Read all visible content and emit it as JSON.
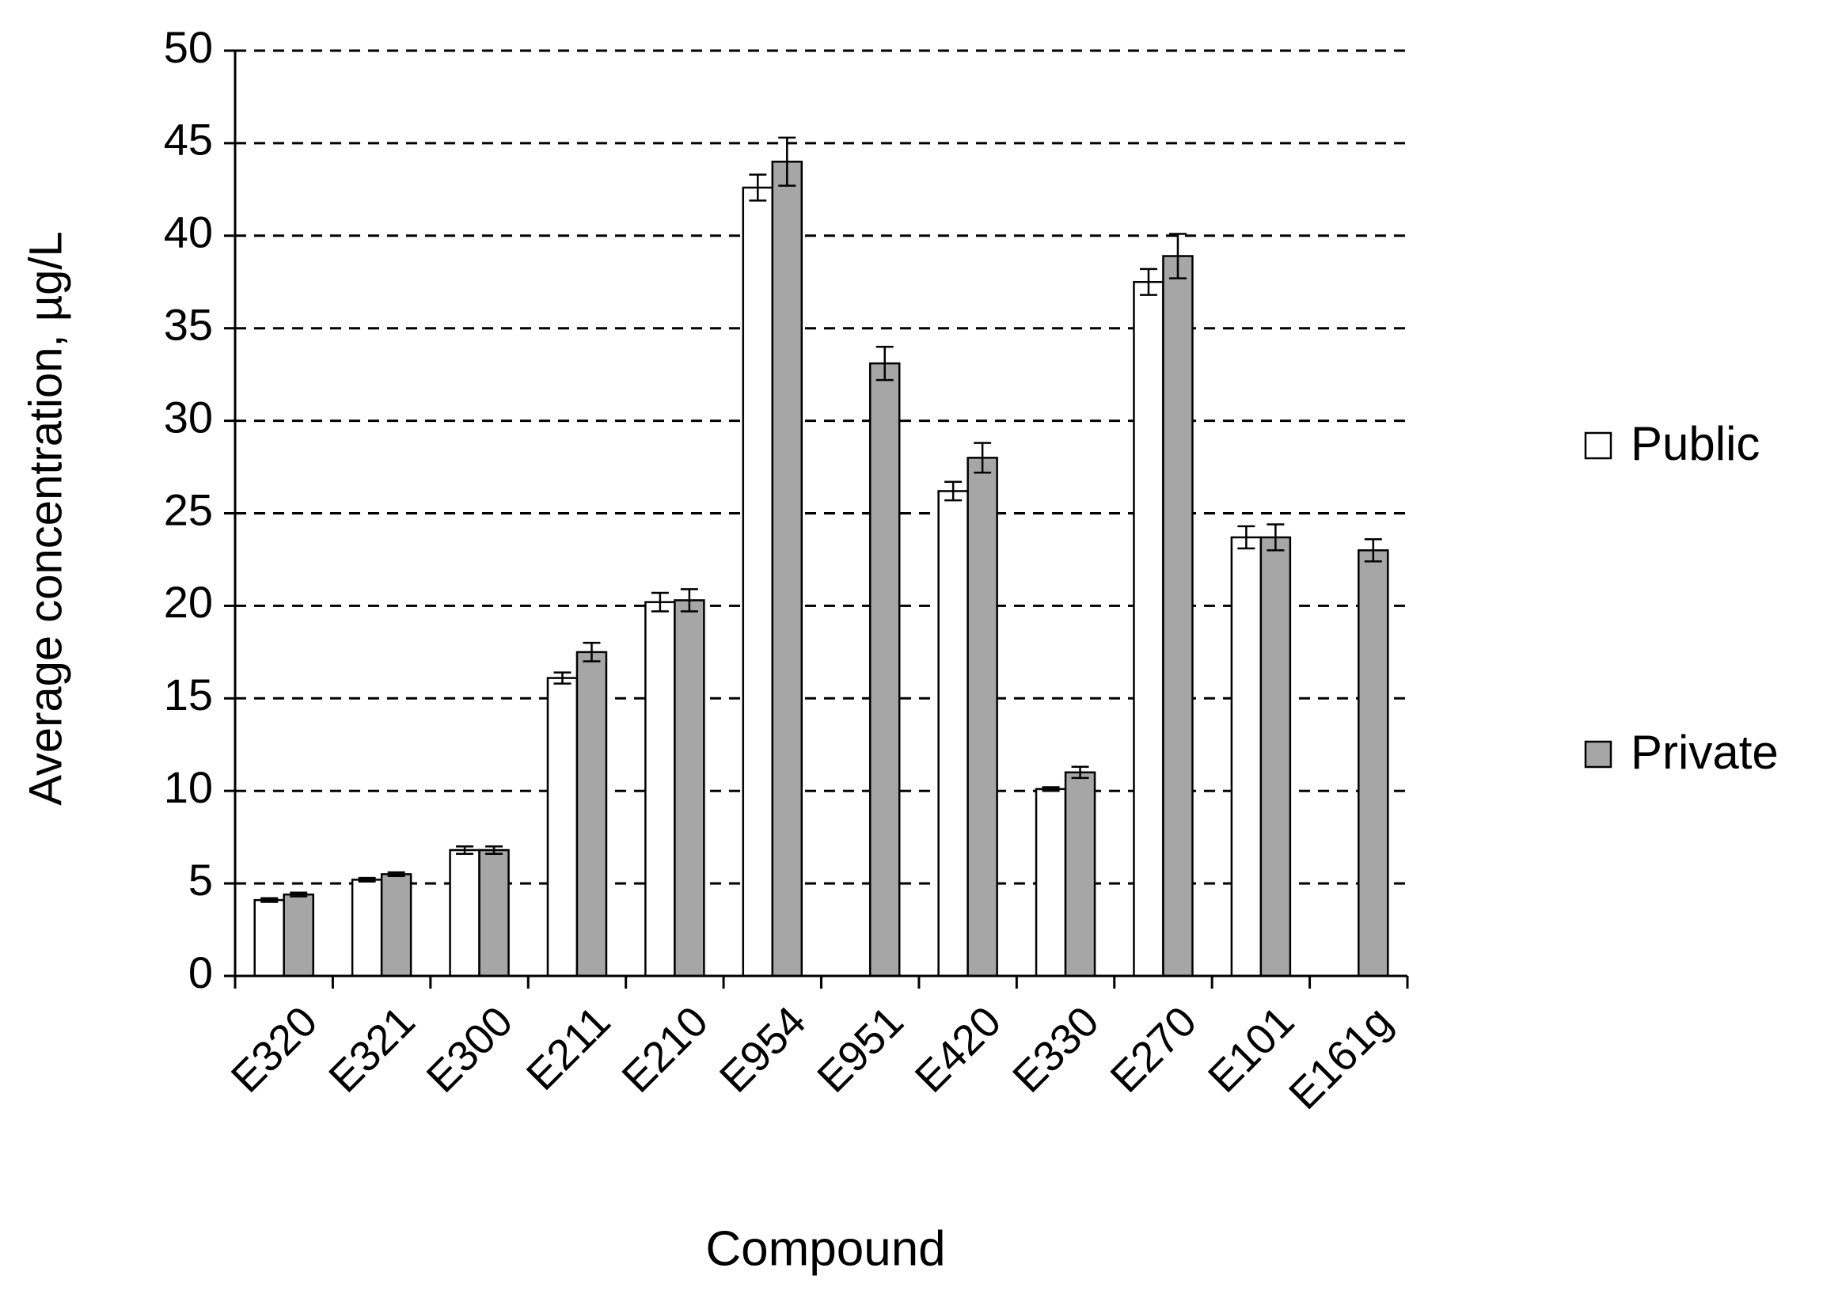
{
  "chart_data": {
    "type": "bar",
    "x_label": "Compound",
    "y_label": "Average concentration, µg/L",
    "categories": [
      "E320",
      "E321",
      "E300",
      "E211",
      "E210",
      "E954",
      "E951",
      "E420",
      "E330",
      "E270",
      "E101",
      "E161g"
    ],
    "series": [
      {
        "name": "Public",
        "color": "#ffffff",
        "values": [
          4.1,
          5.2,
          6.8,
          16.1,
          20.2,
          42.6,
          null,
          26.2,
          10.1,
          37.5,
          23.7,
          null
        ],
        "errors": [
          0.1,
          0.1,
          0.2,
          0.3,
          0.5,
          0.7,
          null,
          0.5,
          0.1,
          0.7,
          0.6,
          null
        ]
      },
      {
        "name": "Private",
        "color": "#a6a6a6",
        "values": [
          4.4,
          5.5,
          6.8,
          17.5,
          20.3,
          44.0,
          33.1,
          28.0,
          11.0,
          38.9,
          23.7,
          23.0
        ],
        "errors": [
          0.1,
          0.1,
          0.2,
          0.5,
          0.6,
          1.3,
          0.9,
          0.8,
          0.3,
          1.2,
          0.7,
          0.6
        ]
      }
    ],
    "ylim": [
      0,
      50
    ],
    "yticks": [
      0,
      5,
      10,
      15,
      20,
      25,
      30,
      35,
      40,
      45,
      50
    ],
    "grid": true,
    "legend": "right"
  }
}
